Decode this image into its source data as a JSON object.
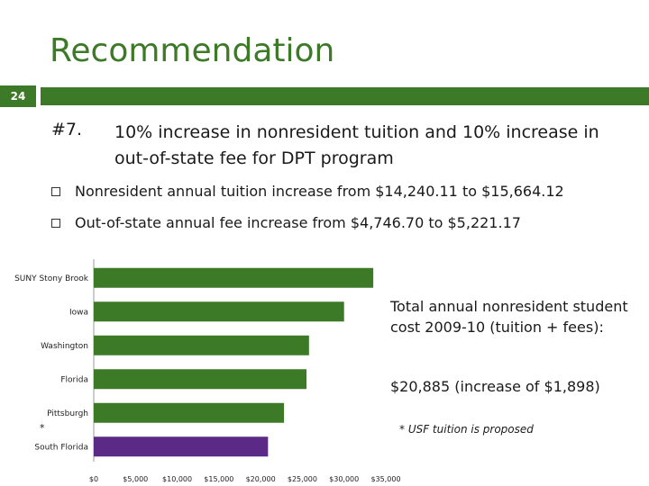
{
  "slide": {
    "title": "Recommendation",
    "page_number": "24",
    "heading_number": "#7.",
    "heading_text": "10% increase in nonresident tuition and 10% increase in out-of-state fee for DPT program",
    "bullets": [
      "Nonresident annual tuition increase from $14,240.11 to $15,664.12",
      "Out-of-state annual fee increase from $4,746.70 to $5,221.17"
    ],
    "side_text": "Total annual nonresident student cost 2009-10 (tuition + fees):",
    "side_value": "$20,885 (increase of $1,898)",
    "footnote": "* USF tuition is proposed",
    "star_marker": "*"
  },
  "colors": {
    "accent": "#3d7a28",
    "bar_default": "#3d7a28",
    "bar_highlight": "#5b2a86"
  },
  "chart_data": {
    "type": "bar",
    "orientation": "horizontal",
    "categories": [
      "SUNY Stony Brook",
      "Iowa",
      "Washington",
      "Florida",
      "Pittsburgh",
      "South Florida"
    ],
    "values": [
      33500,
      30000,
      25800,
      25500,
      22800,
      20885
    ],
    "highlight_category": "South Florida",
    "x_ticks": [
      "$0",
      "$5,000",
      "$10,000",
      "$15,000",
      "$20,000",
      "$25,000",
      "$30,000",
      "$35,000"
    ],
    "xlim": [
      0,
      35000
    ],
    "grid": false,
    "title": "",
    "xlabel": "",
    "ylabel": ""
  }
}
